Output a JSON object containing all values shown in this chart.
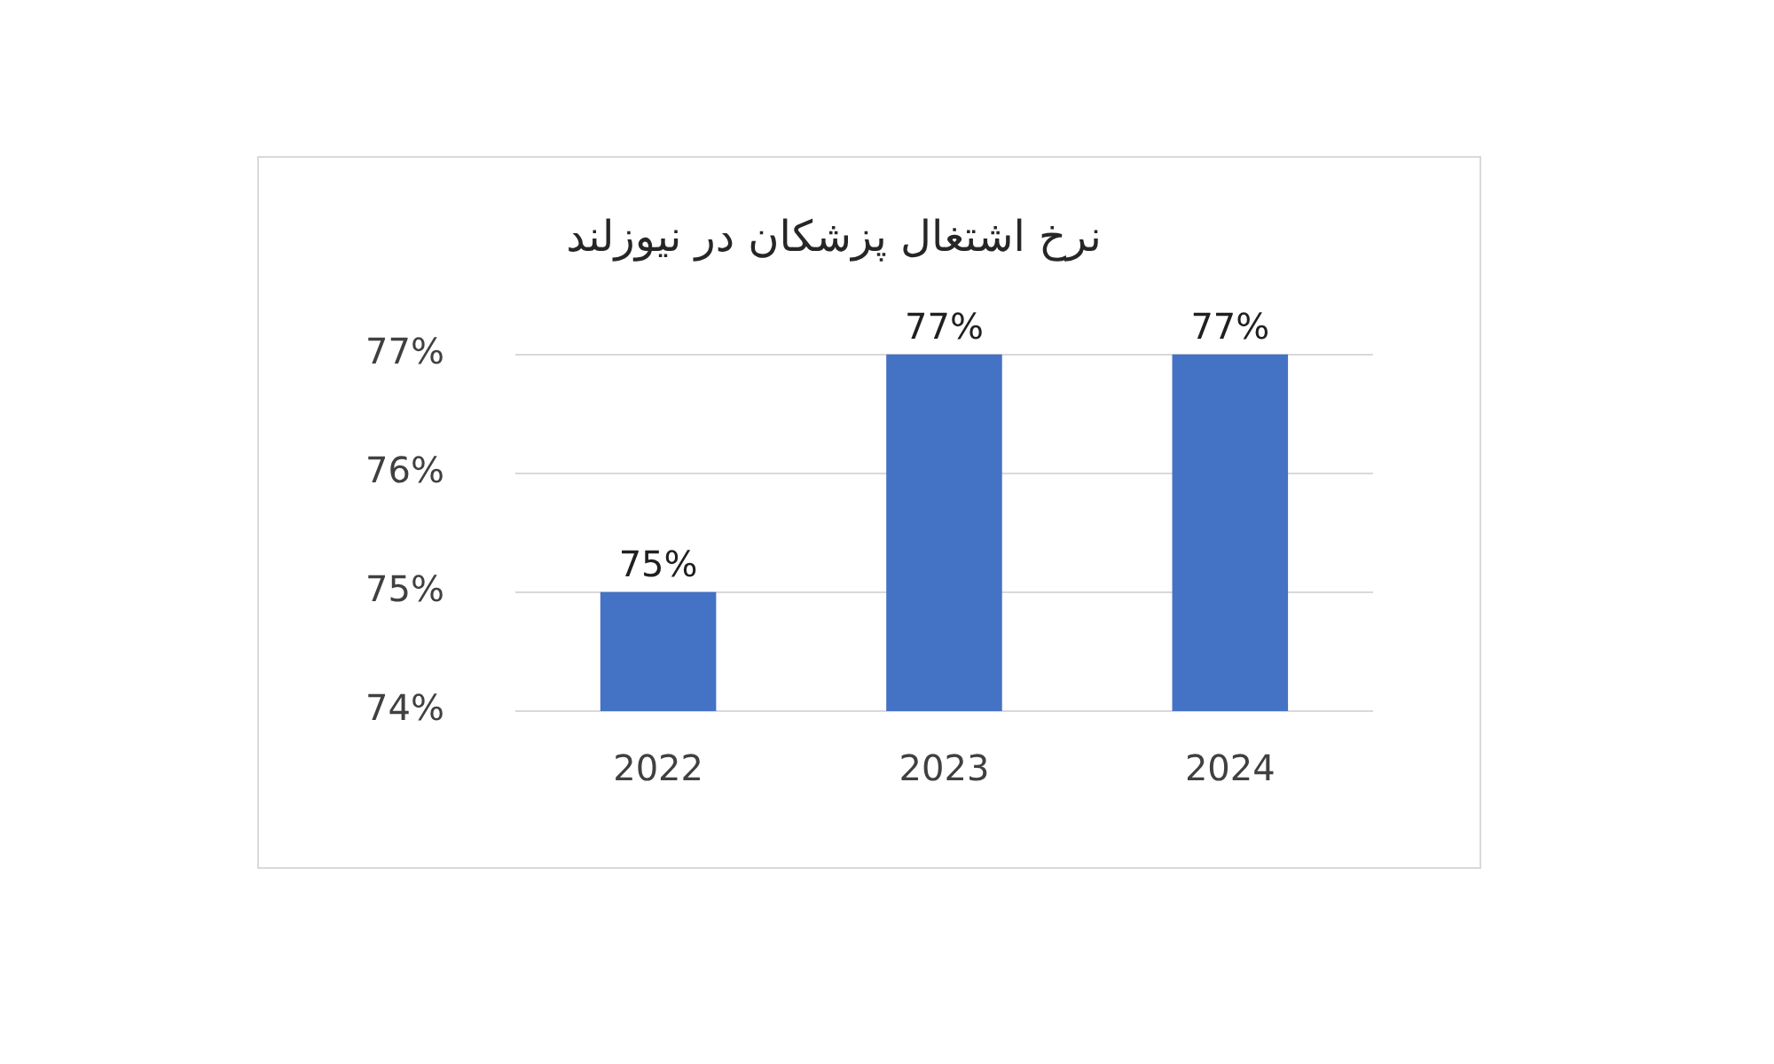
{
  "chart_data": {
    "type": "bar",
    "title": "نرخ اشتغال پزشکان در نیوزلند",
    "categories": [
      "2022",
      "2023",
      "2024"
    ],
    "values": [
      75,
      77,
      77
    ],
    "color": "#4472c4",
    "ylim": [
      74,
      77
    ],
    "yticks": [
      {
        "value": 74,
        "label": "74%"
      },
      {
        "value": 75,
        "label": "75%"
      },
      {
        "value": 76,
        "label": "76%"
      },
      {
        "value": 77,
        "label": "77%"
      }
    ],
    "grid": "y",
    "value_labels": [
      "75%",
      "77%",
      "77%"
    ]
  }
}
